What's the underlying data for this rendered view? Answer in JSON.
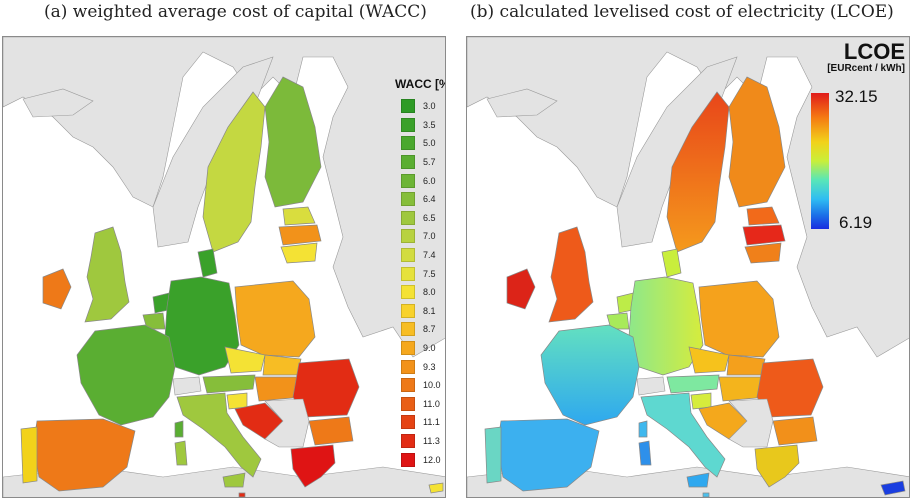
{
  "panels": [
    {
      "title": "(a) weighted average cost of capital (WACC)"
    },
    {
      "title": "(b) calculated levelised cost of electricity (LCOE)"
    }
  ],
  "wacc_legend": {
    "title": "WACC [%]",
    "items": [
      {
        "label": "3.0",
        "color": "#2e9b26"
      },
      {
        "label": "3.5",
        "color": "#3aa12a"
      },
      {
        "label": "5.0",
        "color": "#4aa82e"
      },
      {
        "label": "5.7",
        "color": "#5aae32"
      },
      {
        "label": "6.0",
        "color": "#6db536"
      },
      {
        "label": "6.4",
        "color": "#86be3a"
      },
      {
        "label": "6.5",
        "color": "#9fc83e"
      },
      {
        "label": "7.0",
        "color": "#b8d240"
      },
      {
        "label": "7.4",
        "color": "#d2dc40"
      },
      {
        "label": "7.5",
        "color": "#e6e23c"
      },
      {
        "label": "8.0",
        "color": "#f4e234"
      },
      {
        "label": "8.1",
        "color": "#f8d22c"
      },
      {
        "label": "8.7",
        "color": "#f7bd24"
      },
      {
        "label": "9.0",
        "color": "#f5a81e"
      },
      {
        "label": "9.3",
        "color": "#f2921a"
      },
      {
        "label": "10.0",
        "color": "#ee7918"
      },
      {
        "label": "11.0",
        "color": "#e95f16"
      },
      {
        "label": "11.1",
        "color": "#e54414"
      },
      {
        "label": "11.3",
        "color": "#e22c14"
      },
      {
        "label": "12.0",
        "color": "#df1414"
      }
    ]
  },
  "lcoe_legend": {
    "title": "LCOE",
    "unit": "[EURcent / kWh]",
    "max": "32.15",
    "min": "6.19"
  },
  "colors": {
    "nonEU": "#e3e3e3",
    "sea": "#ffffff",
    "border": "#888888"
  }
}
